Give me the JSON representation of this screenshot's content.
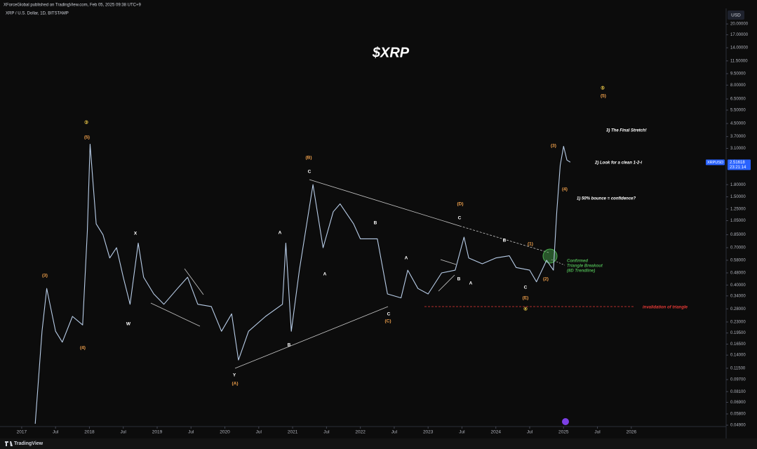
{
  "header": "XForceGlobal published on TradingView.com, Feb 05, 2025 09:38 UTC+9",
  "footer": "TradingView",
  "chart_data": {
    "type": "line",
    "title": "$XRP",
    "subtitle": "XRP / U.S. Dollar, 1D, BITSTAMP",
    "y_axis_label": "USD",
    "log_scale": true,
    "grid": false,
    "x": [
      2017.2,
      2017.3,
      2017.37,
      2017.5,
      2017.6,
      2017.75,
      2017.9,
      2017.97,
      2018.01,
      2018.1,
      2018.2,
      2018.3,
      2018.4,
      2018.5,
      2018.6,
      2018.72,
      2018.8,
      2018.95,
      2019.1,
      2019.3,
      2019.45,
      2019.6,
      2019.8,
      2019.95,
      2020.1,
      2020.2,
      2020.35,
      2020.6,
      2020.85,
      2020.9,
      2020.98,
      2021.1,
      2021.3,
      2021.45,
      2021.6,
      2021.7,
      2021.9,
      2022.0,
      2022.25,
      2022.4,
      2022.6,
      2022.7,
      2022.85,
      2023.0,
      2023.2,
      2023.4,
      2023.53,
      2023.6,
      2023.8,
      2024.0,
      2024.2,
      2024.3,
      2024.5,
      2024.6,
      2024.75,
      2024.85,
      2024.9,
      2024.95,
      2025.0,
      2025.05,
      2025.1
    ],
    "series": [
      {
        "name": "XRPUSD",
        "color": "#b8cde8",
        "values": [
          0.05,
          0.2,
          0.38,
          0.2,
          0.17,
          0.25,
          0.22,
          0.9,
          3.3,
          1.0,
          0.85,
          0.6,
          0.7,
          0.45,
          0.3,
          0.75,
          0.45,
          0.35,
          0.3,
          0.38,
          0.45,
          0.3,
          0.29,
          0.2,
          0.26,
          0.13,
          0.2,
          0.25,
          0.3,
          0.75,
          0.2,
          0.5,
          1.8,
          0.7,
          1.2,
          1.35,
          1.0,
          0.8,
          0.8,
          0.35,
          0.33,
          0.5,
          0.38,
          0.35,
          0.48,
          0.5,
          0.82,
          0.6,
          0.55,
          0.6,
          0.62,
          0.52,
          0.5,
          0.42,
          0.58,
          0.5,
          1.2,
          2.4,
          3.2,
          2.6,
          2.52
        ]
      }
    ],
    "last_price": 2.51618,
    "countdown": "23:21:14",
    "xlim": [
      2016.68,
      2027.4
    ],
    "ylim": [
      0.048,
      23.7
    ],
    "xticks": [
      {
        "value": 2017,
        "label": "2017"
      },
      {
        "value": 2017.5,
        "label": "Jul"
      },
      {
        "value": 2018,
        "label": "2018"
      },
      {
        "value": 2018.5,
        "label": "Jul"
      },
      {
        "value": 2019,
        "label": "2019"
      },
      {
        "value": 2019.5,
        "label": "Jul"
      },
      {
        "value": 2020,
        "label": "2020"
      },
      {
        "value": 2020.5,
        "label": "Jul"
      },
      {
        "value": 2021,
        "label": "2021"
      },
      {
        "value": 2021.5,
        "label": "Jul"
      },
      {
        "value": 2022,
        "label": "2022"
      },
      {
        "value": 2022.5,
        "label": "Jul"
      },
      {
        "value": 2023,
        "label": "2023"
      },
      {
        "value": 2023.5,
        "label": "Jul"
      },
      {
        "value": 2024,
        "label": "2024"
      },
      {
        "value": 2024.5,
        "label": "Jul"
      },
      {
        "value": 2025,
        "label": "2025"
      },
      {
        "value": 2025.5,
        "label": "Jul"
      },
      {
        "value": 2026,
        "label": "2026"
      }
    ],
    "yticks": [
      {
        "value": 20,
        "label": "20.00000"
      },
      {
        "value": 17,
        "label": "17.00000"
      },
      {
        "value": 14,
        "label": "14.00000"
      },
      {
        "value": 11.5,
        "label": "11.50000"
      },
      {
        "value": 9.5,
        "label": "9.50000"
      },
      {
        "value": 8,
        "label": "8.00000"
      },
      {
        "value": 6.5,
        "label": "6.50000"
      },
      {
        "value": 5.5,
        "label": "5.50000"
      },
      {
        "value": 4.5,
        "label": "4.50000"
      },
      {
        "value": 3.7,
        "label": "3.70000"
      },
      {
        "value": 3.1,
        "label": "3.10000"
      },
      {
        "value": 1.8,
        "label": "1.80000"
      },
      {
        "value": 1.5,
        "label": "1.50000"
      },
      {
        "value": 1.25,
        "label": "1.25000"
      },
      {
        "value": 1.05,
        "label": "1.05000"
      },
      {
        "value": 0.85,
        "label": "0.85000"
      },
      {
        "value": 0.7,
        "label": "0.70000"
      },
      {
        "value": 0.58,
        "label": "0.58000"
      },
      {
        "value": 0.48,
        "label": "0.48000"
      },
      {
        "value": 0.4,
        "label": "0.40000"
      },
      {
        "value": 0.34,
        "label": "0.34000"
      },
      {
        "value": 0.28,
        "label": "0.28000"
      },
      {
        "value": 0.23,
        "label": "0.23000"
      },
      {
        "value": 0.195,
        "label": "0.19500"
      },
      {
        "value": 0.165,
        "label": "0.16500"
      },
      {
        "value": 0.14,
        "label": "0.14000"
      },
      {
        "value": 0.115,
        "label": "0.11500"
      },
      {
        "value": 0.097,
        "label": "0.09700"
      },
      {
        "value": 0.081,
        "label": "0.08100"
      },
      {
        "value": 0.069,
        "label": "0.06900"
      },
      {
        "value": 0.058,
        "label": "0.05800"
      },
      {
        "value": 0.049,
        "label": "0.04900"
      }
    ],
    "wave_labels": [
      {
        "text": "③",
        "color": "#e8c547"
      },
      {
        "text": "(5)",
        "color": "#f0a04b"
      },
      {
        "text": "(3)",
        "color": "#f0a04b"
      },
      {
        "text": "(4)",
        "color": "#f0a04b"
      },
      {
        "text": "X",
        "color": "#ffffff"
      },
      {
        "text": "W",
        "color": "#ffffff"
      },
      {
        "text": "Y",
        "color": "#ffffff"
      },
      {
        "text": "(A)",
        "color": "#f0a04b"
      },
      {
        "text": "A",
        "color": "#ffffff"
      },
      {
        "text": "B",
        "color": "#ffffff"
      },
      {
        "text": "(B)",
        "color": "#f0a04b"
      },
      {
        "text": "C",
        "color": "#ffffff"
      },
      {
        "text": "A",
        "color": "#ffffff"
      },
      {
        "text": "B",
        "color": "#ffffff"
      },
      {
        "text": "C",
        "color": "#ffffff"
      },
      {
        "text": "(C)",
        "color": "#f0a04b"
      },
      {
        "text": "(D)",
        "color": "#f0a04b"
      },
      {
        "text": "C",
        "color": "#ffffff"
      },
      {
        "text": "A",
        "color": "#ffffff"
      },
      {
        "text": "B",
        "color": "#ffffff"
      },
      {
        "text": "A",
        "color": "#ffffff"
      },
      {
        "text": "B",
        "color": "#ffffff"
      },
      {
        "text": "C",
        "color": "#ffffff"
      },
      {
        "text": "(E)",
        "color": "#f0a04b"
      },
      {
        "text": "④",
        "color": "#e8c547"
      },
      {
        "text": "(1)",
        "color": "#f0a04b"
      },
      {
        "text": "(2)",
        "color": "#f0a04b"
      },
      {
        "text": "(3)",
        "color": "#f0a04b"
      },
      {
        "text": "(4)",
        "color": "#f0a04b"
      },
      {
        "text": "⑤",
        "color": "#e8c547"
      },
      {
        "text": "(5)",
        "color": "#f0a04b"
      }
    ],
    "annotations": [
      {
        "text": "3) The Final Stretch!",
        "color": "#ffffff"
      },
      {
        "text": "2) Look for a clean 1-2-i",
        "color": "#ffffff"
      },
      {
        "text": "1) 50% bounce = confidence?",
        "color": "#ffffff"
      },
      {
        "text": "Confirmed",
        "color": "#4caf50"
      },
      {
        "text": "Triangle Breakout",
        "color": "#4caf50"
      },
      {
        "text": "(8D Trendline)",
        "color": "#4caf50"
      },
      {
        "text": "invalidation of triangle",
        "color": "#e53935"
      }
    ]
  }
}
